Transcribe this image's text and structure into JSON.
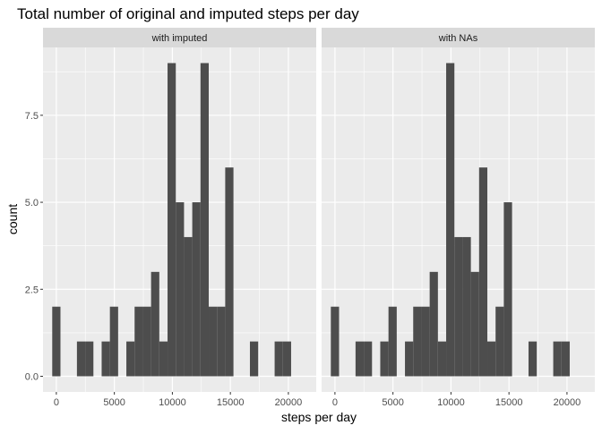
{
  "chart_data": {
    "type": "bar",
    "title": "Total number of original and imputed steps per day",
    "xlabel": "steps per day",
    "ylabel": "count",
    "xlim": [
      -1150,
      22400
    ],
    "ylim": [
      -0.45,
      9.45
    ],
    "x_ticks": [
      0,
      5000,
      10000,
      15000,
      20000
    ],
    "x_tick_labels": [
      "0",
      "5000",
      "10000",
      "15000",
      "20000"
    ],
    "y_ticks": [
      0,
      2.5,
      5,
      7.5
    ],
    "y_tick_labels": [
      "0.0",
      "2.5",
      "5.0",
      "7.5"
    ],
    "grid": true,
    "bar_color": "#4d4d4d",
    "bin_start": -355,
    "bin_width": 710,
    "panels": [
      {
        "strip": "with imputed",
        "counts": [
          2,
          0,
          0,
          1,
          1,
          0,
          1,
          2,
          0,
          1,
          2,
          2,
          3,
          1,
          9,
          5,
          4,
          5,
          9,
          2,
          2,
          6,
          0,
          0,
          1,
          0,
          0,
          1,
          1
        ]
      },
      {
        "strip": "with NAs",
        "counts": [
          2,
          0,
          0,
          1,
          1,
          0,
          1,
          2,
          0,
          1,
          2,
          2,
          3,
          1,
          9,
          4,
          4,
          3,
          6,
          1,
          2,
          5,
          0,
          0,
          1,
          0,
          0,
          1,
          1
        ]
      }
    ]
  }
}
